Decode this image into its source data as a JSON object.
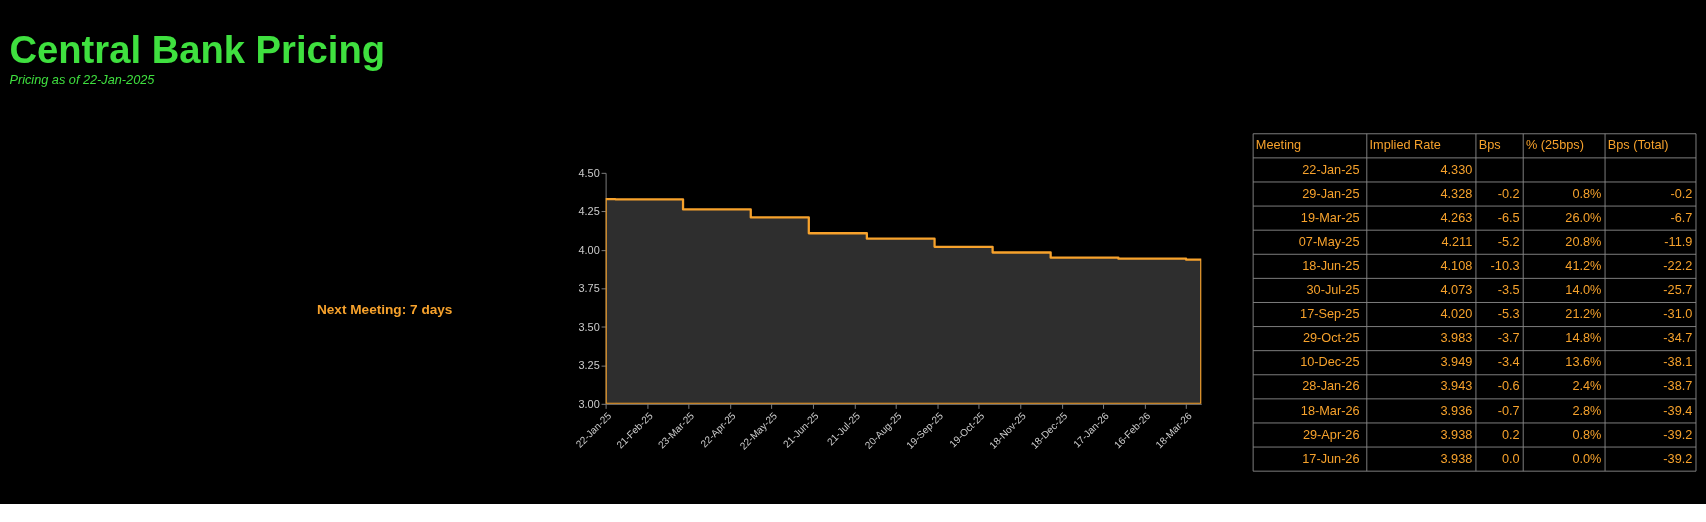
{
  "chart_data": {
    "type": "area",
    "title": "Central Bank Pricing",
    "subtitle": "Pricing as of 22-Jan-2025",
    "annotations": [
      "Next Meeting: 7 days",
      "Meeting",
      "Implied Rate",
      "Bps",
      "% (25bps)",
      "Bps (Total)",
      "22-Jan-25",
      "4.330",
      null,
      null,
      null,
      "29-Jan-25",
      "4.328",
      "-0.2",
      "0.8%",
      "-0.2",
      "19-Mar-25",
      "4.263",
      "-6.5",
      "26.0%",
      "-6.7",
      "07-May-25",
      "4.211",
      "-5.2",
      "20.8%",
      "-11.9",
      "18-Jun-25",
      "4.108",
      "-10.3",
      "41.2%",
      "-22.2",
      "30-Jul-25",
      "4.073",
      "-3.5",
      "14.0%",
      "-25.7",
      "17-Sep-25",
      "4.020",
      "-5.3",
      "21.2%",
      "-31.0",
      "29-Oct-25",
      "3.983",
      "-3.7",
      "14.8%",
      "-34.7",
      "10-Dec-25",
      "3.949",
      "-3.4",
      "13.6%",
      "-38.1",
      "28-Jan-26",
      "3.943",
      "-0.6",
      "2.4%",
      "-38.7",
      "18-Mar-26",
      "3.936",
      "-0.7",
      "2.8%",
      "-39.4",
      "29-Apr-26",
      "3.938",
      "0.2",
      "0.8%",
      "-39.2",
      "17-Jun-26",
      "3.938",
      "0.0",
      "0.0%",
      "-39.2"
    ],
    "series": [
      {
        "color": "#f7a22c",
        "x": [
          "2025-01-22",
          "2025-01-29",
          "2025-03-19",
          "2025-05-07",
          "2025-06-18",
          "2025-07-30",
          "2025-09-17",
          "2025-10-29",
          "2025-12-10",
          "2026-01-28",
          "2026-03-18",
          "2026-03-29"
        ],
        "values": [
          4.33,
          4.328,
          4.263,
          4.211,
          4.108,
          4.073,
          4.02,
          3.983,
          3.949,
          3.943,
          3.936,
          3.936
        ]
      }
    ],
    "xlim": [
      "2025-01-22",
      "2026-03-29"
    ],
    "xticks": [
      {
        "value": "2025-01-22",
        "label": "22-Jan-25"
      },
      {
        "value": "2025-02-21",
        "label": "21-Feb-25"
      },
      {
        "value": "2025-03-23",
        "label": "23-Mar-25"
      },
      {
        "value": "2025-04-22",
        "label": "22-Apr-25"
      },
      {
        "value": "2025-05-22",
        "label": "22-May-25"
      },
      {
        "value": "2025-06-21",
        "label": "21-Jun-25"
      },
      {
        "value": "2025-07-21",
        "label": "21-Jul-25"
      },
      {
        "value": "2025-08-20",
        "label": "20-Aug-25"
      },
      {
        "value": "2025-09-19",
        "label": "19-Sep-25"
      },
      {
        "value": "2025-10-19",
        "label": "19-Oct-25"
      },
      {
        "value": "2025-11-18",
        "label": "18-Nov-25"
      },
      {
        "value": "2025-12-18",
        "label": "18-Dec-25"
      },
      {
        "value": "2026-01-17",
        "label": "17-Jan-26"
      },
      {
        "value": "2026-02-16",
        "label": "16-Feb-26"
      },
      {
        "value": "2026-03-18",
        "label": "18-Mar-26"
      }
    ],
    "ylim": [
      3.0,
      4.5
    ],
    "yticks": [
      {
        "value": 3.0,
        "label": "3.00"
      },
      {
        "value": 3.25,
        "label": "3.25"
      },
      {
        "value": 3.5,
        "label": "3.50"
      },
      {
        "value": 3.75,
        "label": "3.75"
      },
      {
        "value": 4.0,
        "label": "4.00"
      },
      {
        "value": 4.25,
        "label": "4.25"
      },
      {
        "value": 4.5,
        "label": "4.50"
      }
    ],
    "grid": false
  }
}
